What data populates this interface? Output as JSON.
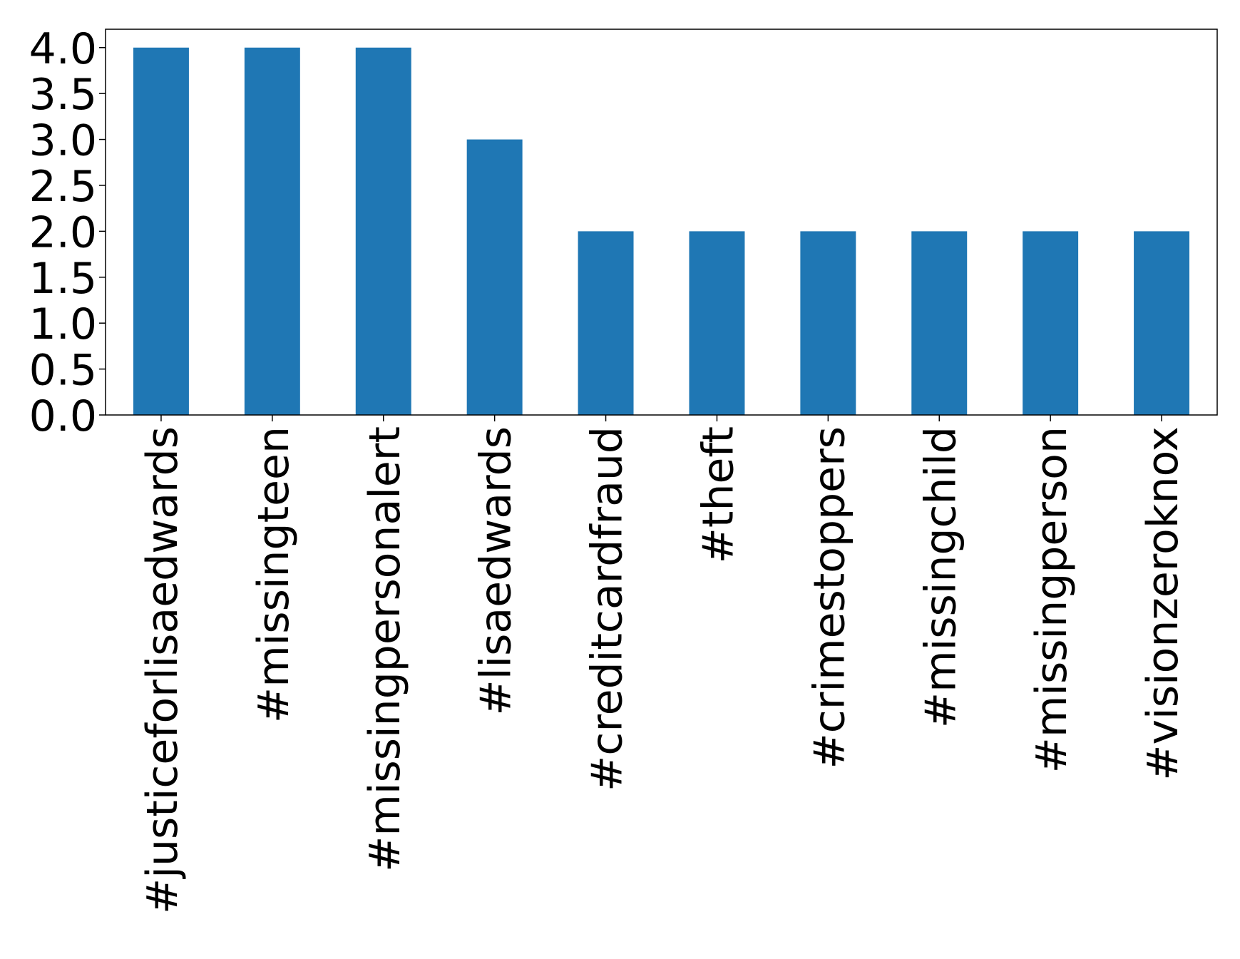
{
  "chart_data": {
    "type": "bar",
    "categories": [
      "#justiceforlisaedwards",
      "#missingteen",
      "#missingpersonalert",
      "#lisaedwards",
      "#creditcardfraud",
      "#theft",
      "#crimestoppers",
      "#missingchild",
      "#missingperson",
      "#visionzeroknox"
    ],
    "values": [
      4,
      4,
      4,
      3,
      2,
      2,
      2,
      2,
      2,
      2
    ],
    "color": "#1f77b4",
    "ylim": [
      0,
      4.2
    ],
    "yticks": [
      {
        "value": 0,
        "label": "0.0"
      },
      {
        "value": 0.5,
        "label": "0.5"
      },
      {
        "value": 1,
        "label": "1.0"
      },
      {
        "value": 1.5,
        "label": "1.5"
      },
      {
        "value": 2,
        "label": "2.0"
      },
      {
        "value": 2.5,
        "label": "2.5"
      },
      {
        "value": 3,
        "label": "3.0"
      },
      {
        "value": 3.5,
        "label": "3.5"
      },
      {
        "value": 4,
        "label": "4.0"
      }
    ],
    "grid": false
  }
}
